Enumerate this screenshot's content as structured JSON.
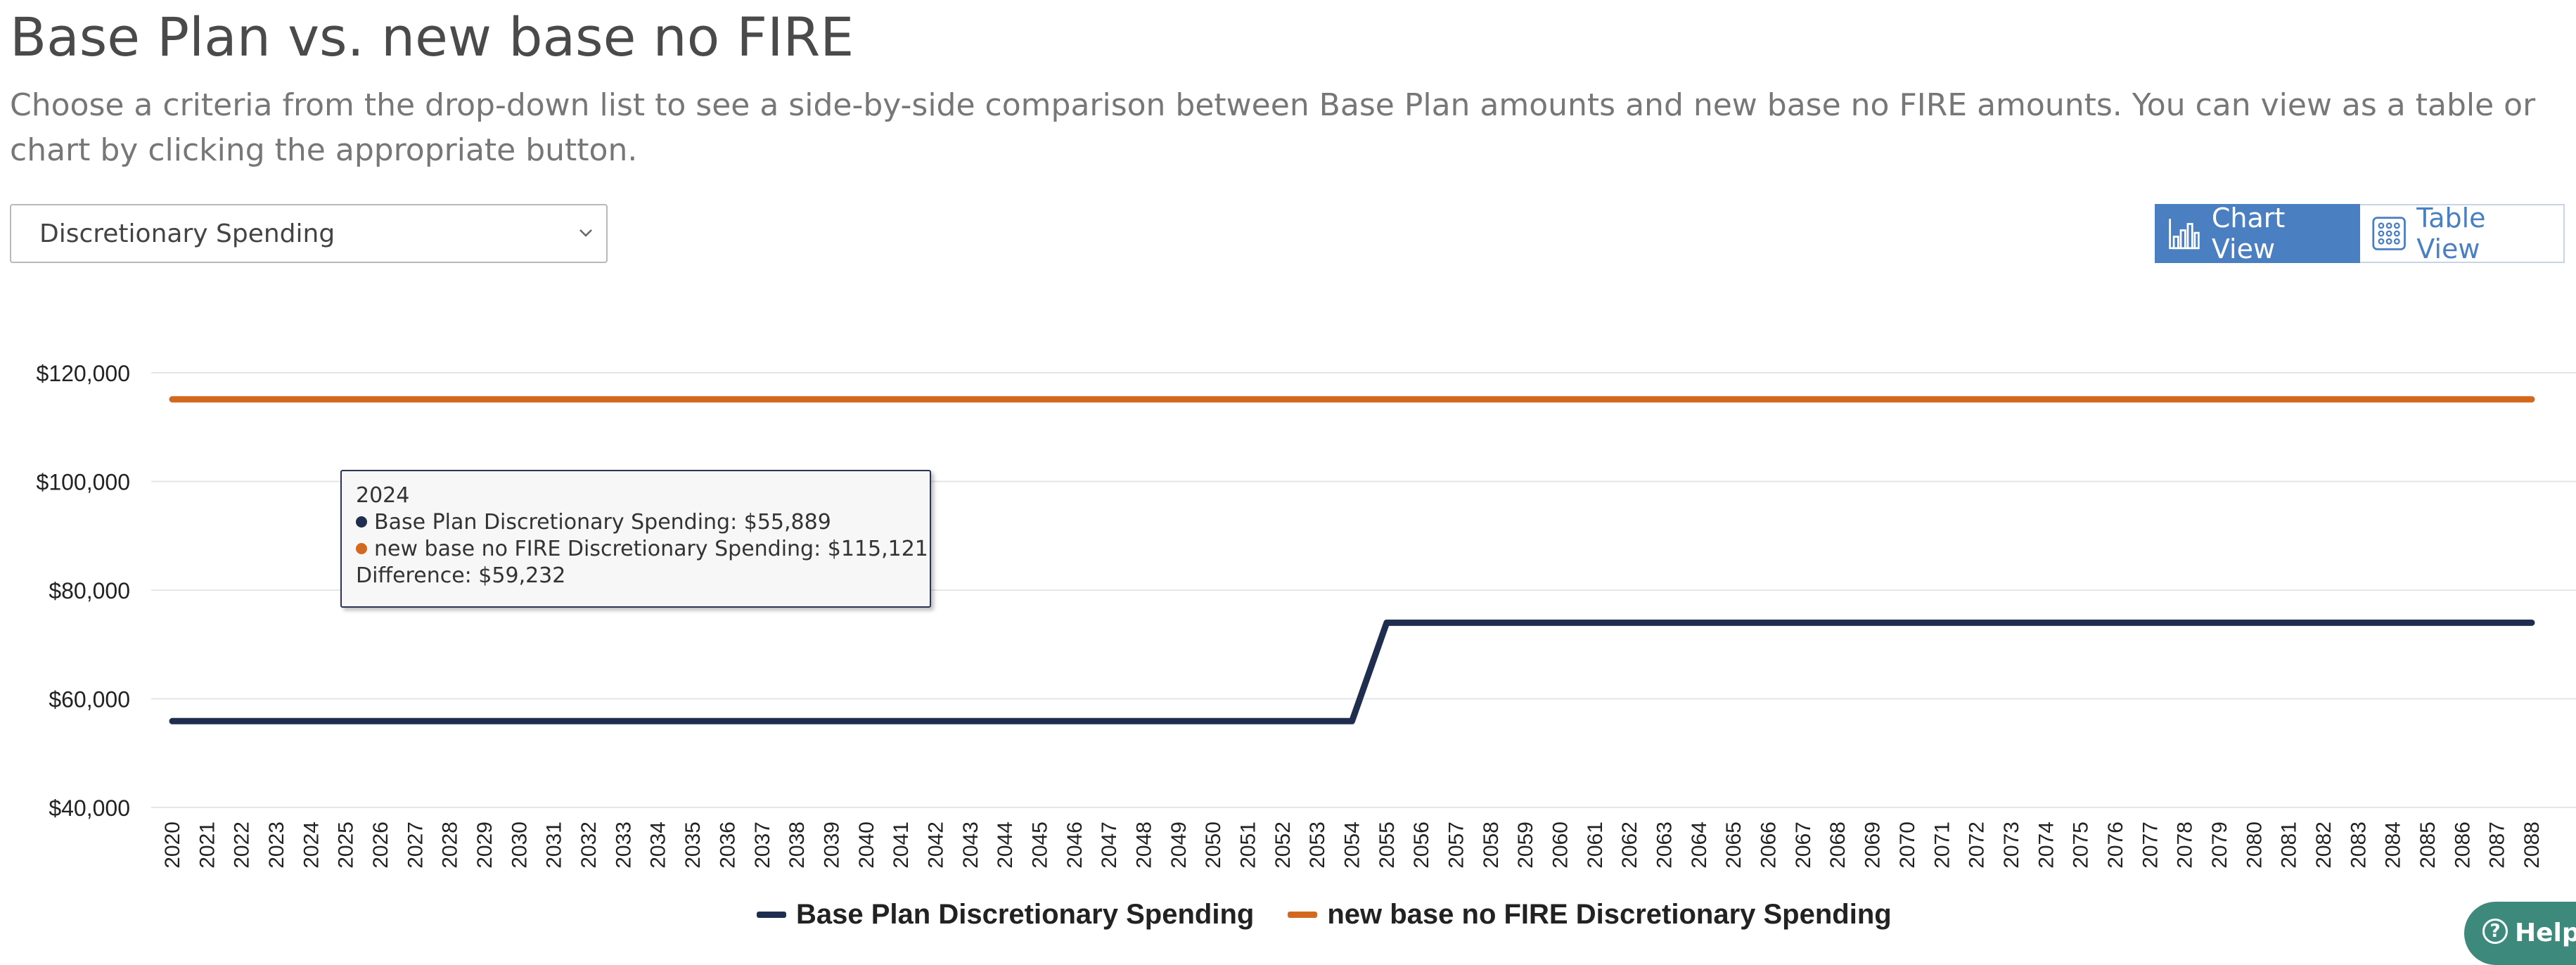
{
  "page": {
    "title": "Base Plan vs. new base no FIRE",
    "description": "Choose a criteria from the drop-down list to see a side-by-side comparison between Base Plan amounts and new base no FIRE amounts. You can view as a table or chart by clicking the appropriate button."
  },
  "criteria": {
    "selected": "Discretionary Spending"
  },
  "view_toggle": {
    "chart_label": "Chart View",
    "table_label": "Table View",
    "active": "chart"
  },
  "tooltip": {
    "year": "2024",
    "line1": "Base Plan Discretionary Spending: $55,889",
    "line2": "new base no FIRE Discretionary Spending: $115,121",
    "difference": "Difference: $59,232"
  },
  "help": {
    "label": "Help"
  },
  "colors": {
    "accent": "#4a7fc1",
    "series_base": "#1f2d4f",
    "series_nofire": "#d2691e",
    "help": "#3d8a7d"
  },
  "chart_data": {
    "type": "line",
    "x": [
      2020,
      2021,
      2022,
      2023,
      2024,
      2025,
      2026,
      2027,
      2028,
      2029,
      2030,
      2031,
      2032,
      2033,
      2034,
      2035,
      2036,
      2037,
      2038,
      2039,
      2040,
      2041,
      2042,
      2043,
      2044,
      2045,
      2046,
      2047,
      2048,
      2049,
      2050,
      2051,
      2052,
      2053,
      2054,
      2055,
      2056,
      2057,
      2058,
      2059,
      2060,
      2061,
      2062,
      2063,
      2064,
      2065,
      2066,
      2067,
      2068,
      2069,
      2070,
      2071,
      2072,
      2073,
      2074,
      2075,
      2076,
      2077,
      2078,
      2079,
      2080,
      2081,
      2082,
      2083,
      2084,
      2085,
      2086,
      2087,
      2088
    ],
    "yticks": [
      "$40,000",
      "$60,000",
      "$80,000",
      "$100,000",
      "$120,000"
    ],
    "ylim": [
      40000,
      120000
    ],
    "series": [
      {
        "name": "Base Plan Discretionary Spending",
        "color": "#1f2d4f",
        "values": [
          55889,
          55889,
          55889,
          55889,
          55889,
          55889,
          55889,
          55889,
          55889,
          55889,
          55889,
          55889,
          55889,
          55889,
          55889,
          55889,
          55889,
          55889,
          55889,
          55889,
          55889,
          55889,
          55889,
          55889,
          55889,
          55889,
          55889,
          55889,
          55889,
          55889,
          55889,
          55889,
          55889,
          55889,
          55889,
          74000,
          74000,
          74000,
          74000,
          74000,
          74000,
          74000,
          74000,
          74000,
          74000,
          74000,
          74000,
          74000,
          74000,
          74000,
          74000,
          74000,
          74000,
          74000,
          74000,
          74000,
          74000,
          74000,
          74000,
          74000,
          74000,
          74000,
          74000,
          74000,
          74000,
          74000,
          74000,
          74000,
          74000
        ]
      },
      {
        "name": "new base no FIRE Discretionary Spending",
        "color": "#d2691e",
        "values": [
          115121,
          115121,
          115121,
          115121,
          115121,
          115121,
          115121,
          115121,
          115121,
          115121,
          115121,
          115121,
          115121,
          115121,
          115121,
          115121,
          115121,
          115121,
          115121,
          115121,
          115121,
          115121,
          115121,
          115121,
          115121,
          115121,
          115121,
          115121,
          115121,
          115121,
          115121,
          115121,
          115121,
          115121,
          115121,
          115121,
          115121,
          115121,
          115121,
          115121,
          115121,
          115121,
          115121,
          115121,
          115121,
          115121,
          115121,
          115121,
          115121,
          115121,
          115121,
          115121,
          115121,
          115121,
          115121,
          115121,
          115121,
          115121,
          115121,
          115121,
          115121,
          115121,
          115121,
          115121,
          115121,
          115121,
          115121,
          115121,
          115121
        ]
      }
    ],
    "grid": true,
    "legend": "bottom-center"
  }
}
